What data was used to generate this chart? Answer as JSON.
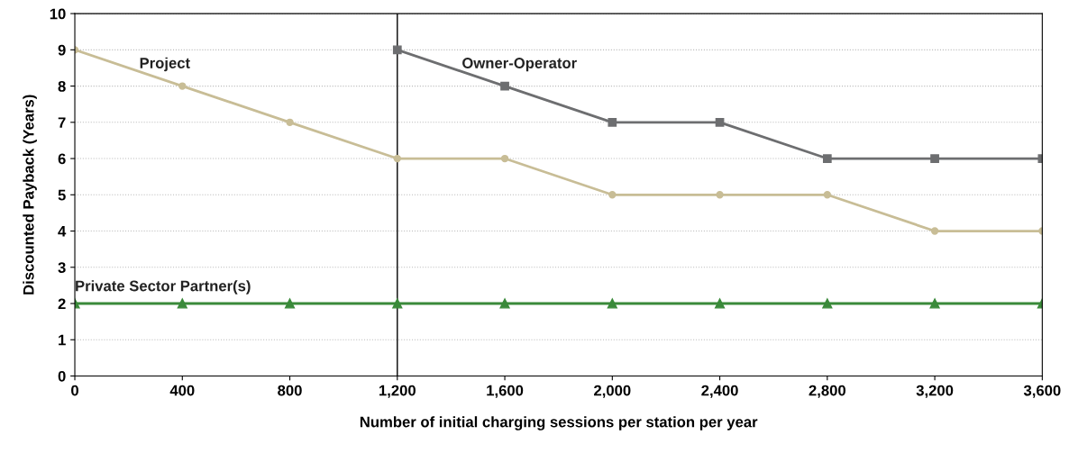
{
  "chart_data": {
    "type": "line",
    "xlabel": "Number of initial charging sessions per station per year",
    "ylabel": "Discounted Payback (Years)",
    "x": [
      0,
      400,
      800,
      1200,
      1600,
      2000,
      2400,
      2800,
      3200,
      3600
    ],
    "series": [
      {
        "name": "Project",
        "color": "#c8bd96",
        "marker": "circle",
        "values": [
          9,
          8,
          7,
          6,
          6,
          5,
          5,
          5,
          4,
          4
        ]
      },
      {
        "name": "Owner-Operator",
        "color": "#6d6e70",
        "marker": "square",
        "x": [
          1200,
          1600,
          2000,
          2400,
          2800,
          3200,
          3600
        ],
        "values": [
          9,
          8,
          7,
          7,
          6,
          6,
          6
        ]
      },
      {
        "name": "Private Sector Partner(s)",
        "color": "#3a8a3a",
        "marker": "triangle",
        "values": [
          2,
          2,
          2,
          2,
          2,
          2,
          2,
          2,
          2,
          2
        ]
      }
    ],
    "xlim": [
      0,
      3600
    ],
    "ylim": [
      0,
      10
    ],
    "xticks": [
      0,
      400,
      800,
      {
        "value": 1200,
        "label": "1,200"
      },
      {
        "value": 1600,
        "label": "1,600"
      },
      {
        "value": 2000,
        "label": "2,000"
      },
      {
        "value": 2400,
        "label": "2,400"
      },
      {
        "value": 2800,
        "label": "2,800"
      },
      {
        "value": 3200,
        "label": "3,200"
      },
      {
        "value": 3600,
        "label": "3,600"
      }
    ],
    "yticks": [
      0,
      1,
      2,
      3,
      4,
      5,
      6,
      7,
      8,
      9,
      10
    ],
    "ref_lines": [
      {
        "axis": "x",
        "value": 1200,
        "color": "#000000"
      }
    ],
    "grid": "y",
    "legend": false,
    "line_style": "solid"
  }
}
